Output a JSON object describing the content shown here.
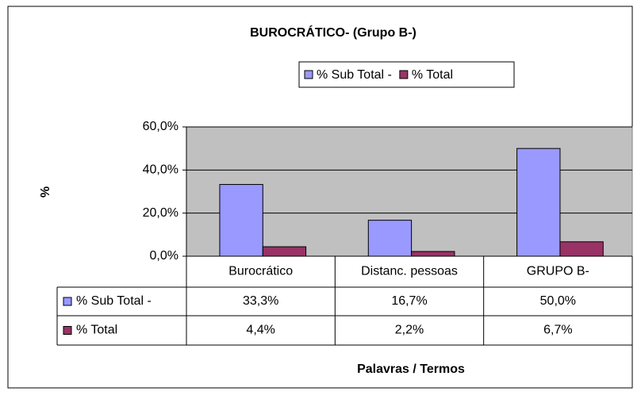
{
  "chart_data": {
    "type": "bar",
    "title": "BUROCRÁTICO- (Grupo B-)",
    "x_label": "Palavras / Termos",
    "y_label": "%",
    "categories": [
      "Burocrático",
      "Distanc. pessoas",
      "GRUPO B-"
    ],
    "series": [
      {
        "name": "% Sub Total -",
        "color": "#9999ff",
        "values": [
          33.3,
          16.7,
          50.0
        ],
        "value_labels": [
          "33,3%",
          "16,7%",
          "50,0%"
        ]
      },
      {
        "name": "% Total",
        "color": "#993366",
        "values": [
          4.4,
          2.2,
          6.7
        ],
        "value_labels": [
          "4,4%",
          "2,2%",
          "6,7%"
        ]
      }
    ],
    "ylim": [
      0,
      60
    ],
    "yticks": [
      {
        "value": 0,
        "label": "0,0%"
      },
      {
        "value": 20,
        "label": "20,0%"
      },
      {
        "value": 40,
        "label": "40,0%"
      },
      {
        "value": 60,
        "label": "60,0%"
      }
    ],
    "grid": true,
    "plot_background": "#c0c0c0",
    "legend": "top"
  }
}
